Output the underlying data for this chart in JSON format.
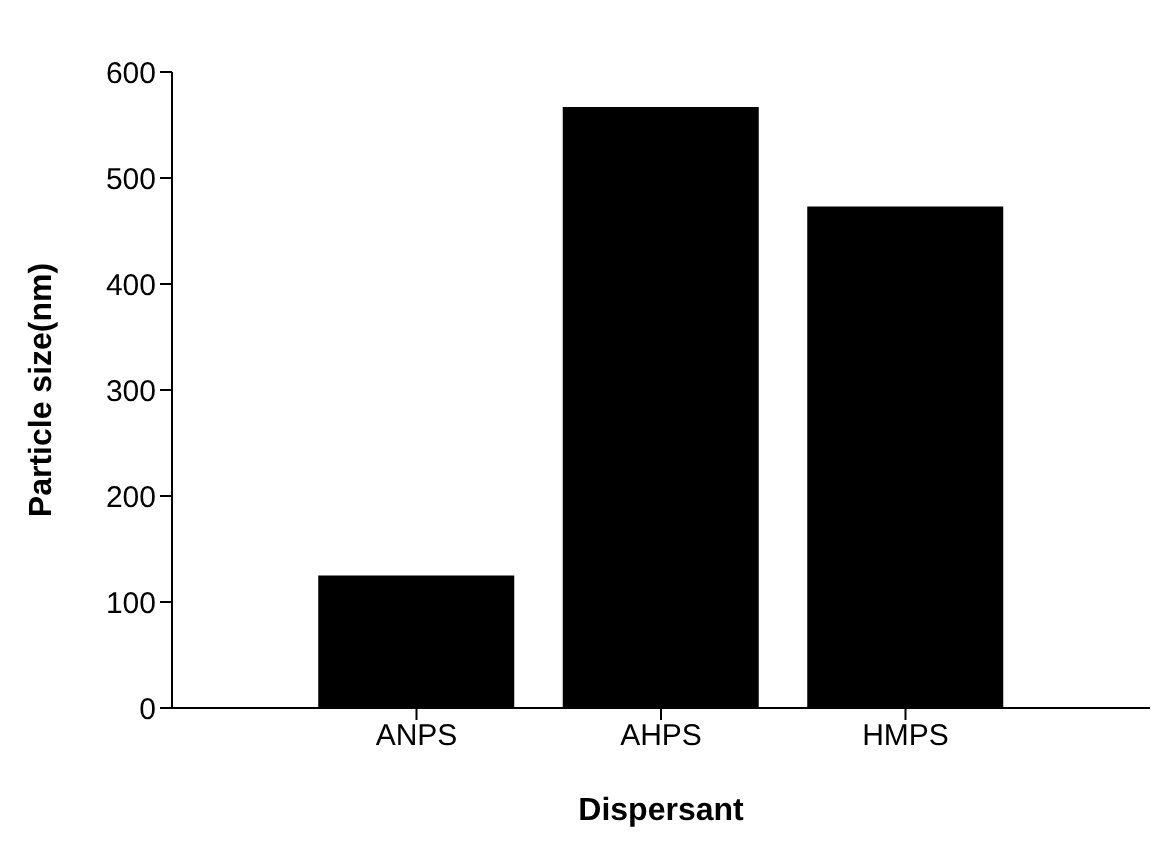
{
  "chart_data": {
    "type": "bar",
    "xlabel": "Dispersant",
    "ylabel": "Particle size(nm)",
    "categories": [
      "ANPS",
      "AHPS",
      "HMPS"
    ],
    "values": [
      125,
      567,
      473
    ],
    "color": "#000000",
    "ylim": [
      0,
      600
    ],
    "yticks": [
      0,
      100,
      200,
      300,
      400,
      500,
      600
    ],
    "grid": false,
    "legend": false
  }
}
